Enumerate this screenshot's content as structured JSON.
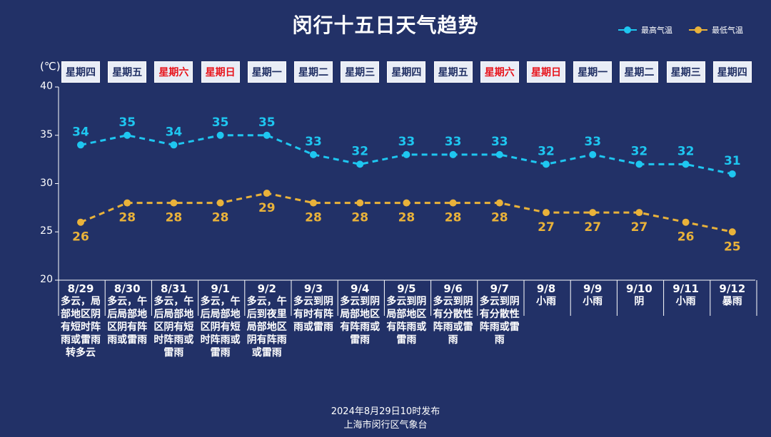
{
  "title": "闵行十五日天气趋势",
  "legend": {
    "high": "最高气温",
    "low": "最低气温"
  },
  "unit": "(℃)",
  "colors": {
    "background": "#223167",
    "high": "#1ec6f0",
    "low": "#e9b23a",
    "weekend": "#e8141c",
    "weekday_box": "#e9edf6"
  },
  "footer": {
    "published": "2024年8月29日10时发布",
    "org": "上海市闵行区气象台"
  },
  "chart_data": {
    "type": "line",
    "ylim": [
      20,
      40
    ],
    "yticks": [
      20,
      25,
      30,
      35,
      40
    ],
    "grid": false,
    "legend_position": "top-right",
    "days": [
      {
        "date": "8/29",
        "weekday": "星期四",
        "weekend": false,
        "weather": "多云，局部地区阴有短时阵雨或雷雨转多云"
      },
      {
        "date": "8/30",
        "weekday": "星期五",
        "weekend": false,
        "weather": "多云，午后局部地区阴有阵雨或雷雨"
      },
      {
        "date": "8/31",
        "weekday": "星期六",
        "weekend": true,
        "weather": "多云，午后局部地区阴有短时阵雨或雷雨"
      },
      {
        "date": "9/1",
        "weekday": "星期日",
        "weekend": true,
        "weather": "多云，午后局部地区阴有短时阵雨或雷雨"
      },
      {
        "date": "9/2",
        "weekday": "星期一",
        "weekend": false,
        "weather": "多云，午后到夜里局部地区阴有阵雨或雷雨"
      },
      {
        "date": "9/3",
        "weekday": "星期二",
        "weekend": false,
        "weather": "多云到阴有时有阵雨或雷雨"
      },
      {
        "date": "9/4",
        "weekday": "星期三",
        "weekend": false,
        "weather": "多云到阴局部地区有阵雨或雷雨"
      },
      {
        "date": "9/5",
        "weekday": "星期四",
        "weekend": false,
        "weather": "多云到阴局部地区有阵雨或雷雨"
      },
      {
        "date": "9/6",
        "weekday": "星期五",
        "weekend": false,
        "weather": "多云到阴有分散性阵雨或雷雨"
      },
      {
        "date": "9/7",
        "weekday": "星期六",
        "weekend": true,
        "weather": "多云到阴有分散性阵雨或雷雨"
      },
      {
        "date": "9/8",
        "weekday": "星期日",
        "weekend": true,
        "weather": "小雨"
      },
      {
        "date": "9/9",
        "weekday": "星期一",
        "weekend": false,
        "weather": "小雨"
      },
      {
        "date": "9/10",
        "weekday": "星期二",
        "weekend": false,
        "weather": "阴"
      },
      {
        "date": "9/11",
        "weekday": "星期三",
        "weekend": false,
        "weather": "小雨"
      },
      {
        "date": "9/12",
        "weekday": "星期四",
        "weekend": false,
        "weather": "暴雨"
      }
    ],
    "series": [
      {
        "name": "最高气温",
        "values": [
          34,
          35,
          34,
          35,
          35,
          33,
          32,
          33,
          33,
          33,
          32,
          33,
          32,
          32,
          31
        ]
      },
      {
        "name": "最低气温",
        "values": [
          26,
          28,
          28,
          28,
          29,
          28,
          28,
          28,
          28,
          28,
          27,
          27,
          27,
          26,
          25
        ]
      }
    ]
  }
}
